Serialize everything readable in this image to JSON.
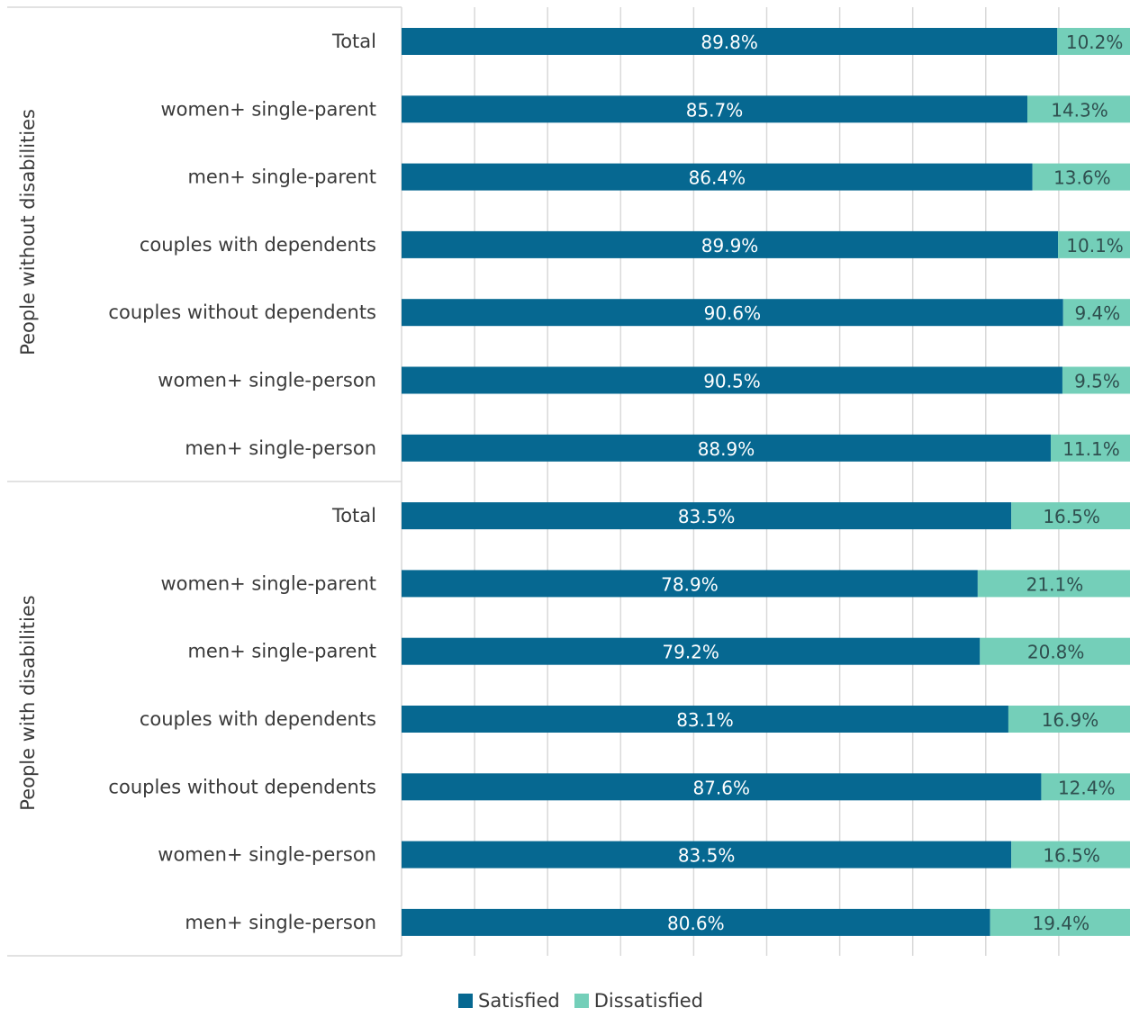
{
  "chart_data": {
    "type": "bar",
    "orientation": "horizontal",
    "stacked": "percent",
    "title": "",
    "xlim": [
      0,
      100
    ],
    "grid": true,
    "legend_position": "bottom",
    "colors": {
      "Satisfied": "#066891",
      "Dissatisfied": "#74cfb9"
    },
    "groups": [
      {
        "label": "People without disabilities",
        "categories": [
          "Total",
          "women+ single-parent",
          "men+ single-parent",
          "couples with  dependents",
          "couples without dependents",
          "women+ single-person",
          "men+ single-person"
        ]
      },
      {
        "label": "People with disabilities",
        "categories": [
          "Total",
          "women+ single-parent",
          "men+ single-parent",
          "couples with dependents",
          "couples without dependents",
          "women+ single-person",
          "men+ single-person"
        ]
      }
    ],
    "series": [
      {
        "name": "Satisfied",
        "values": [
          89.8,
          85.7,
          86.4,
          89.9,
          90.6,
          90.5,
          88.9,
          83.5,
          78.9,
          79.2,
          83.1,
          87.6,
          83.5,
          80.6
        ],
        "labels": [
          "89.8%",
          "85.7%",
          "86.4%",
          "89.9%",
          "90.6%",
          "90.5%",
          "88.9%",
          "83.5%",
          "78.9%",
          "79.2%",
          "83.1%",
          "87.6%",
          "83.5%",
          "80.6%"
        ]
      },
      {
        "name": "Dissatisfied",
        "values": [
          10.2,
          14.3,
          13.6,
          10.1,
          9.4,
          9.5,
          11.1,
          16.5,
          21.1,
          20.8,
          16.9,
          12.4,
          16.5,
          19.4
        ],
        "labels": [
          "10.2%",
          "14.3%",
          "13.6%",
          "10.1%",
          "9.4%",
          "9.5%",
          "11.1%",
          "16.5%",
          "21.1%",
          "20.8%",
          "16.9%",
          "12.4%",
          "16.5%",
          "19.4%"
        ]
      }
    ]
  },
  "legend": {
    "satisfied": "Satisfied",
    "dissatisfied": "Dissatisfied"
  }
}
